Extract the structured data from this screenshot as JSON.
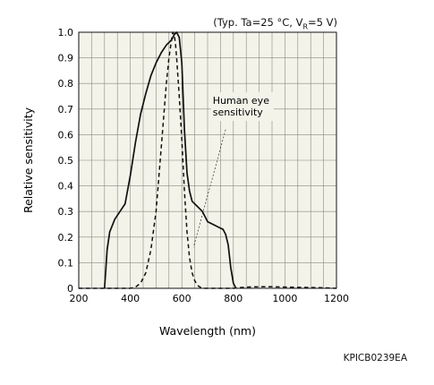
{
  "conditions": {
    "prefix": "(Typ. Ta=25 °C, V",
    "sub": "R",
    "suffix": "=5 V)"
  },
  "figure_code": "KPICB0239EA",
  "chart_data": {
    "type": "line",
    "xlabel": "Wavelength (nm)",
    "ylabel": "Relative sensitivity",
    "xlim": [
      200,
      1200
    ],
    "ylim": [
      0,
      1.0
    ],
    "xticks": [
      200,
      400,
      600,
      800,
      1000,
      1200
    ],
    "yticks": [
      0,
      0.1,
      0.2,
      0.3,
      0.4,
      0.5,
      0.6,
      0.7,
      0.8,
      0.9,
      1.0
    ],
    "ytick_labels": [
      "0",
      "0.1",
      "0.2",
      "0.3",
      "0.4",
      "0.5",
      "0.6",
      "0.7",
      "0.8",
      "0.9",
      "1.0"
    ],
    "grid": true,
    "annotation": {
      "lines": [
        "Human eye",
        "sensitivity"
      ]
    },
    "series": [
      {
        "style": "solid",
        "x": [
          300,
          305,
          310,
          320,
          340,
          360,
          380,
          400,
          420,
          440,
          460,
          480,
          500,
          520,
          540,
          560,
          570,
          580,
          590,
          600,
          610,
          620,
          630,
          640,
          660,
          680,
          690,
          700,
          720,
          740,
          760,
          770,
          780,
          790,
          800,
          810
        ],
        "y": [
          0.0,
          0.07,
          0.15,
          0.22,
          0.27,
          0.3,
          0.33,
          0.44,
          0.57,
          0.68,
          0.76,
          0.83,
          0.88,
          0.92,
          0.95,
          0.97,
          0.99,
          1.0,
          0.98,
          0.88,
          0.62,
          0.45,
          0.38,
          0.34,
          0.32,
          0.3,
          0.28,
          0.26,
          0.25,
          0.24,
          0.23,
          0.21,
          0.17,
          0.08,
          0.02,
          0.0
        ]
      },
      {
        "style": "dashed",
        "x": [
          200,
          250,
          300,
          330,
          360,
          380,
          400,
          420,
          440,
          460,
          480,
          500,
          520,
          540,
          550,
          560,
          565,
          570,
          575,
          580,
          590,
          600,
          610,
          620,
          630,
          640,
          650,
          660,
          670,
          680,
          700,
          720,
          760,
          800,
          850,
          900,
          950,
          1000,
          1050,
          1100,
          1150,
          1200
        ],
        "y": [
          0.0,
          0.0,
          0.0,
          0.0,
          0.0,
          0.0,
          0.0,
          0.005,
          0.02,
          0.06,
          0.15,
          0.3,
          0.55,
          0.8,
          0.9,
          0.97,
          1.0,
          0.99,
          0.96,
          0.9,
          0.75,
          0.58,
          0.38,
          0.22,
          0.12,
          0.06,
          0.03,
          0.012,
          0.005,
          0.0,
          0.0,
          0.0,
          0.0,
          0.0,
          0.005,
          0.006,
          0.006,
          0.005,
          0.004,
          0.003,
          0.002,
          0.0
        ]
      }
    ]
  }
}
